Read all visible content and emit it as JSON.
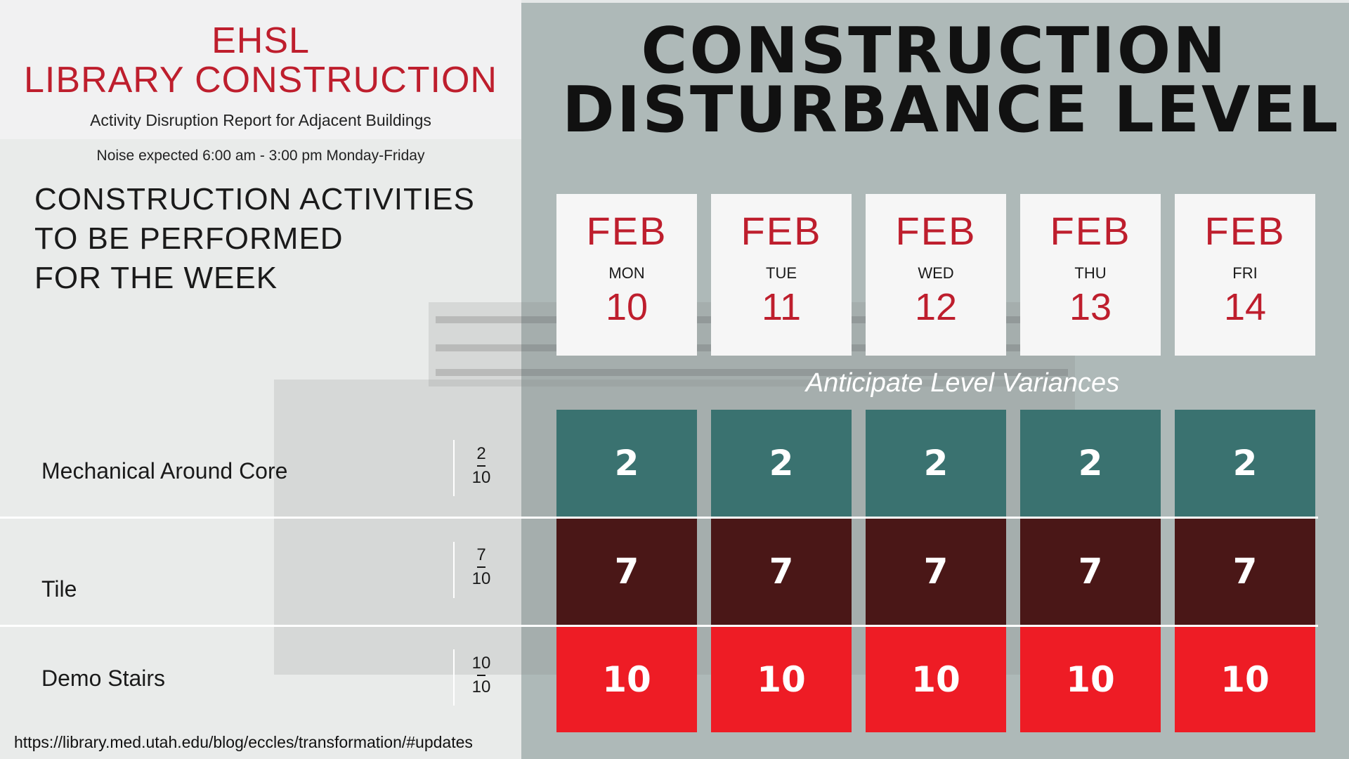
{
  "header": {
    "brand_line1": "EHSL",
    "brand_line2": "LIBRARY CONSTRUCTION",
    "subtitle": "Activity Disruption Report for Adjacent Buildings",
    "noise_note": "Noise expected 6:00 am - 3:00 pm Monday-Friday"
  },
  "activities_heading": [
    "CONSTRUCTION ACTIVITIES",
    "TO BE PERFORMED",
    "FOR THE WEEK"
  ],
  "main_title": {
    "line1": "CONSTRUCTION",
    "line2": "DISTURBANCE LEVEL"
  },
  "days": [
    {
      "month": "FEB",
      "weekday": "MON",
      "date": "10"
    },
    {
      "month": "FEB",
      "weekday": "TUE",
      "date": "11"
    },
    {
      "month": "FEB",
      "weekday": "WED",
      "date": "12"
    },
    {
      "month": "FEB",
      "weekday": "THU",
      "date": "13"
    },
    {
      "month": "FEB",
      "weekday": "FRI",
      "date": "14"
    }
  ],
  "variance_note": "Anticipate Level Variances",
  "activities": [
    {
      "name": "Mechanical Around Core",
      "level_num": "2",
      "level_den": "10",
      "daily": [
        "2",
        "2",
        "2",
        "2",
        "2"
      ],
      "color": "#3a7270"
    },
    {
      "name": "Tile",
      "level_num": "7",
      "level_den": "10",
      "daily": [
        "7",
        "7",
        "7",
        "7",
        "7"
      ],
      "color": "#4a1717"
    },
    {
      "name": "Demo Stairs",
      "level_num": "10",
      "level_den": "10",
      "daily": [
        "10",
        "10",
        "10",
        "10",
        "10"
      ],
      "color": "#ee1c25"
    }
  ],
  "footer": {
    "url": "https://library.med.utah.edu/blog/eccles/transformation/#updates"
  }
}
